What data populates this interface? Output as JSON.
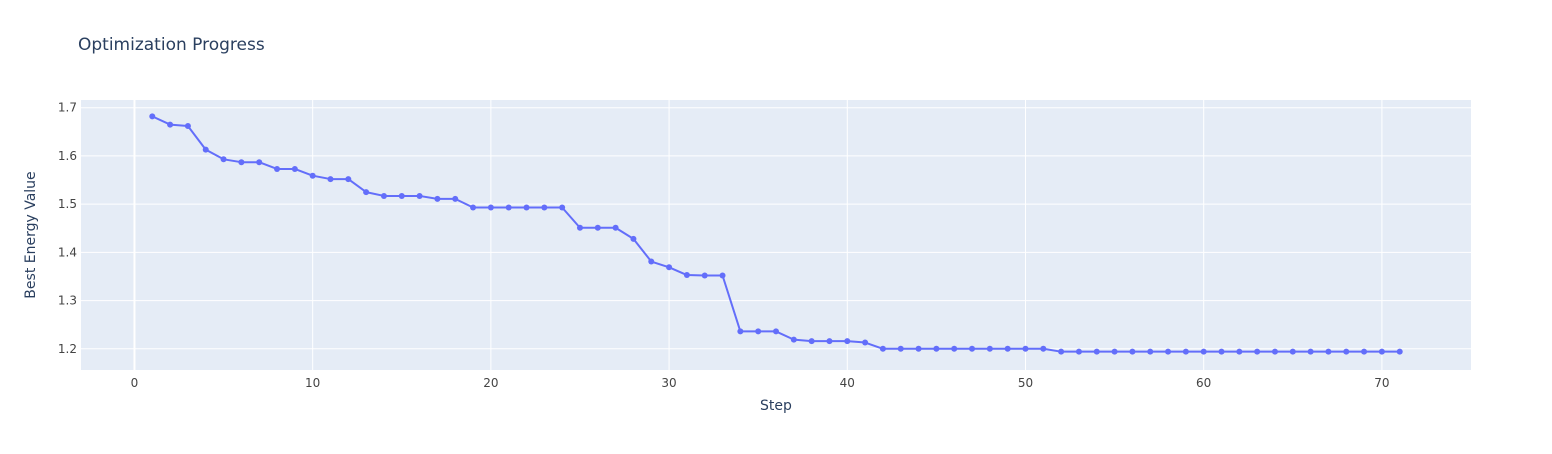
{
  "chart_data": {
    "type": "line",
    "title": "Optimization Progress",
    "xlabel": "Step",
    "ylabel": "Best Energy Value",
    "xlim": [
      -3,
      75
    ],
    "ylim": [
      1.156,
      1.716
    ],
    "xticks": [
      0,
      10,
      20,
      30,
      40,
      50,
      60,
      70
    ],
    "yticks": [
      1.2,
      1.3,
      1.4,
      1.5,
      1.6,
      1.7
    ],
    "grid": true,
    "legend": "none",
    "mode": "lines+markers",
    "colors": {
      "line": "#636efa",
      "plot_bg": "#e5ecf6",
      "grid": "#ffffff",
      "text": "#2a3f5f",
      "tick_text": "#444444"
    },
    "series": [
      {
        "x": [
          1,
          2,
          3,
          4,
          5,
          6,
          7,
          8,
          9,
          10,
          11,
          12,
          13,
          14,
          15,
          16,
          17,
          18,
          19,
          20,
          21,
          22,
          23,
          24,
          25,
          26,
          27,
          28,
          29,
          30,
          31,
          32,
          33,
          34,
          35,
          36,
          37,
          38,
          39,
          40,
          41,
          42,
          43,
          44,
          45,
          46,
          47,
          48,
          49,
          50,
          51,
          52,
          53,
          54,
          55,
          56,
          57,
          58,
          59,
          60,
          61,
          62,
          63,
          64,
          65,
          66,
          67,
          68,
          69,
          70,
          71
        ],
        "y": [
          1.682,
          1.665,
          1.662,
          1.613,
          1.593,
          1.587,
          1.587,
          1.573,
          1.573,
          1.559,
          1.552,
          1.552,
          1.525,
          1.517,
          1.517,
          1.517,
          1.511,
          1.511,
          1.493,
          1.493,
          1.493,
          1.493,
          1.493,
          1.493,
          1.451,
          1.451,
          1.451,
          1.428,
          1.381,
          1.369,
          1.353,
          1.352,
          1.352,
          1.236,
          1.236,
          1.236,
          1.219,
          1.216,
          1.216,
          1.216,
          1.213,
          1.2,
          1.2,
          1.2,
          1.2,
          1.2,
          1.2,
          1.2,
          1.2,
          1.2,
          1.2,
          1.194,
          1.194,
          1.194,
          1.194,
          1.194,
          1.194,
          1.194,
          1.194,
          1.194,
          1.194,
          1.194,
          1.194,
          1.194,
          1.194,
          1.194,
          1.194,
          1.194,
          1.194,
          1.194,
          1.194
        ]
      }
    ]
  }
}
